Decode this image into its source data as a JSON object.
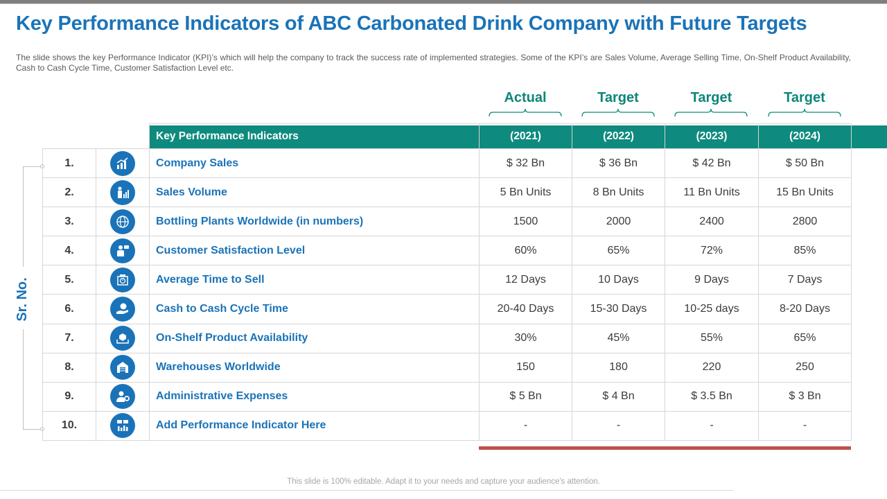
{
  "title": "Key Performance Indicators of ABC Carbonated Drink Company with Future Targets",
  "subtitle": "The slide shows the key Performance  Indicator (KPI)’s which will help the company to track the success rate of implemented  strategies. Some of the KPI’s are Sales Volume, Average  Selling Time, On-Shelf Product Availability,  Cash to Cash Cycle Time,  Customer Satisfaction Level  etc.",
  "side_label": "Sr. No.",
  "column_groups": [
    {
      "label": "Actual"
    },
    {
      "label": "Target"
    },
    {
      "label": "Target"
    },
    {
      "label": "Target"
    }
  ],
  "table": {
    "header": {
      "kpi": "Key Performance Indicators",
      "years": [
        "(2021)",
        "(2022)",
        "(2023)",
        "(2024)"
      ]
    },
    "rows": [
      {
        "num": "1.",
        "icon": "sales-chart-icon",
        "name": "Company Sales",
        "values": [
          "$ 32 Bn",
          "$ 36 Bn",
          "$ 42 Bn",
          "$ 50 Bn"
        ]
      },
      {
        "num": "2.",
        "icon": "presenter-chart-icon",
        "name": "Sales Volume",
        "values": [
          "5 Bn Units",
          "8 Bn Units",
          "11 Bn Units",
          "15 Bn Units"
        ]
      },
      {
        "num": "3.",
        "icon": "globe-icon",
        "name": "Bottling Plants Worldwide (in numbers)",
        "values": [
          "1500",
          "2000",
          "2400",
          "2800"
        ]
      },
      {
        "num": "4.",
        "icon": "customer-feedback-icon",
        "name": "Customer Satisfaction Level",
        "values": [
          "60%",
          "65%",
          "72%",
          "85%"
        ]
      },
      {
        "num": "5.",
        "icon": "time-sell-icon",
        "name": "Average Time to Sell",
        "values": [
          "12 Days",
          "10 Days",
          "9 Days",
          "7 Days"
        ]
      },
      {
        "num": "6.",
        "icon": "cash-hand-icon",
        "name": "Cash to Cash Cycle Time",
        "values": [
          "20-40 Days",
          "15-30 Days",
          "10-25 days",
          "8-20 Days"
        ]
      },
      {
        "num": "7.",
        "icon": "product-box-icon",
        "name": "On-Shelf Product Availability",
        "values": [
          "30%",
          "45%",
          "55%",
          "65%"
        ]
      },
      {
        "num": "8.",
        "icon": "warehouse-icon",
        "name": "Warehouses Worldwide",
        "values": [
          "150",
          "180",
          "220",
          "250"
        ]
      },
      {
        "num": "9.",
        "icon": "admin-gear-icon",
        "name": "Administrative Expenses",
        "values": [
          "$ 5 Bn",
          "$ 4 Bn",
          "$ 3.5 Bn",
          "$ 3 Bn"
        ]
      },
      {
        "num": "10.",
        "icon": "performance-dashboard-icon",
        "name": "Add Performance Indicator Here",
        "values": [
          "-",
          "-",
          "-",
          "-"
        ]
      }
    ]
  },
  "footer": "This slide is 100% editable. Adapt it to your needs and capture your audience's attention.",
  "colors": {
    "title_blue": "#1a73b8",
    "teal": "#0e8a7e",
    "accent_red": "#c0504d"
  }
}
